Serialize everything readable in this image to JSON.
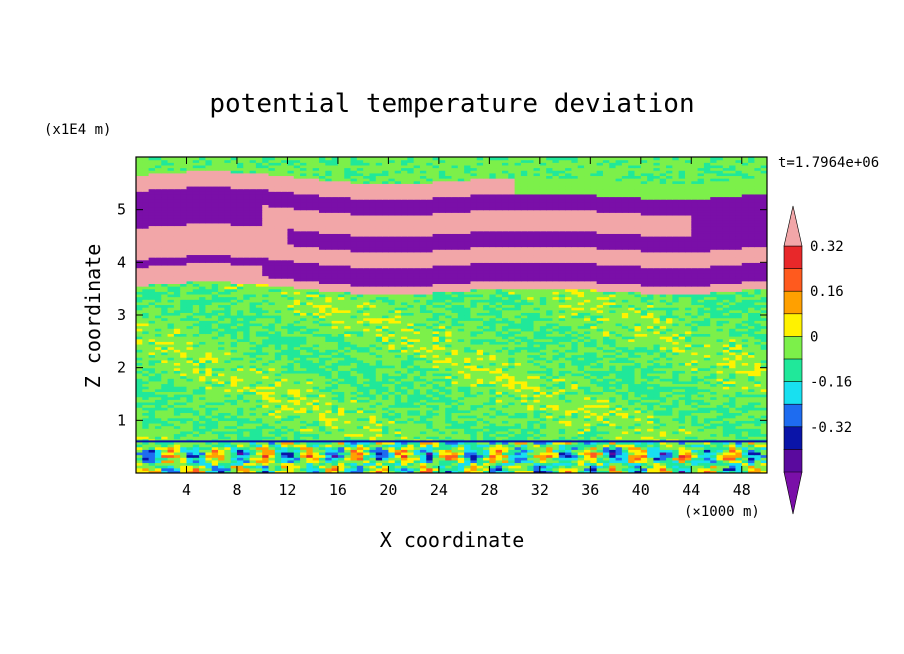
{
  "chart_data": {
    "type": "heatmap",
    "title": "potential temperature deviation",
    "xlabel": "X coordinate",
    "ylabel": "Z coordinate",
    "x_unit": "(×1000 m)",
    "y_unit": "(x1E4 m)",
    "time_label": "t=1.7964e+06",
    "xlim": [
      0,
      50
    ],
    "ylim": [
      0,
      6
    ],
    "x_ticks": [
      4,
      8,
      12,
      16,
      20,
      24,
      28,
      32,
      36,
      40,
      44,
      48
    ],
    "y_ticks": [
      1,
      2,
      3,
      4,
      5
    ],
    "grid": false,
    "colorbar": {
      "placement": "right",
      "levels": [
        -0.4,
        -0.32,
        -0.24,
        -0.16,
        -0.08,
        0,
        0.08,
        0.16,
        0.24,
        0.32,
        0.4
      ],
      "tick_labels": [
        "0.32",
        "0.16",
        "0",
        "-0.16",
        "-0.32"
      ],
      "tick_values": [
        0.32,
        0.16,
        0,
        -0.16,
        -0.32
      ],
      "colors": [
        "#7a0fa8",
        "#5a0a9e",
        "#0a14a8",
        "#1e6cf0",
        "#18e0f0",
        "#20e89a",
        "#7cf04a",
        "#fff200",
        "#ffa000",
        "#ff5a1e",
        "#e8282a",
        "#f2a6a8"
      ],
      "extend_low_color": "#7a0fa8",
      "extend_high_color": "#f2a6a8"
    },
    "layers": [
      {
        "z_range": [
          0,
          0.6
        ],
        "description_value": 0.0,
        "mixed": true
      },
      {
        "z_range": [
          0.6,
          3.5
        ],
        "value": 0.04
      },
      {
        "z_range": [
          3.5,
          3.7
        ],
        "value": 0.4
      },
      {
        "z_range": [
          3.7,
          4.0
        ],
        "value": -0.4
      },
      {
        "z_range": [
          4.0,
          4.3
        ],
        "value": 0.4
      },
      {
        "z_range": [
          4.3,
          4.6
        ],
        "value": -0.4
      },
      {
        "z_range": [
          4.6,
          5.0
        ],
        "value": 0.4
      },
      {
        "z_range": [
          5.0,
          5.3
        ],
        "value": -0.4
      },
      {
        "z_range": [
          5.3,
          5.6
        ],
        "value": 0.4
      },
      {
        "z_range": [
          5.6,
          6.0
        ],
        "value": 0.0
      }
    ]
  }
}
